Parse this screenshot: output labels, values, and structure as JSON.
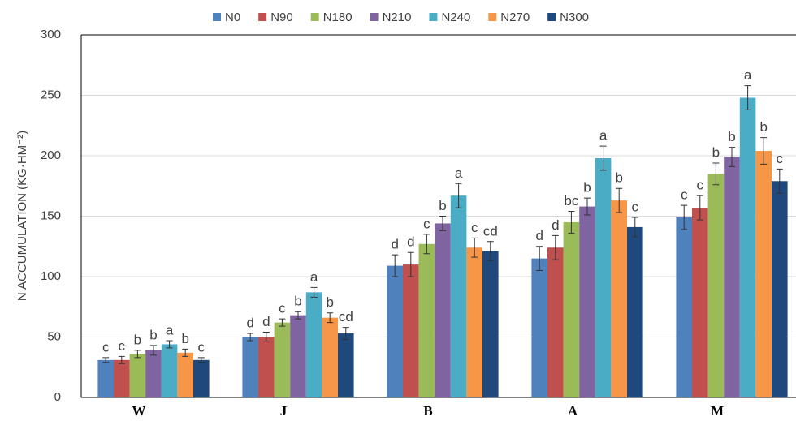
{
  "chart_data": {
    "type": "bar",
    "y_label": "N ACCUMULATION (KG·HM⁻²)",
    "categories": [
      "W",
      "J",
      "B",
      "A",
      "M"
    ],
    "series": [
      {
        "name": "N0",
        "color": "#4f81bd",
        "values": [
          31,
          50,
          109,
          115,
          149
        ],
        "errors": [
          2,
          3,
          9,
          10,
          10
        ],
        "labels": [
          "c",
          "d",
          "d",
          "d",
          "c"
        ]
      },
      {
        "name": "N90",
        "color": "#c0504d",
        "values": [
          31,
          50,
          110,
          124,
          157
        ],
        "errors": [
          3,
          4,
          10,
          10,
          10
        ],
        "labels": [
          "c",
          "d",
          "d",
          "d",
          "c"
        ]
      },
      {
        "name": "N180",
        "color": "#9bbb59",
        "values": [
          36,
          62,
          127,
          145,
          185
        ],
        "errors": [
          3,
          3,
          8,
          9,
          9
        ],
        "labels": [
          "b",
          "c",
          "c",
          "bc",
          "b"
        ]
      },
      {
        "name": "N210",
        "color": "#8064a2",
        "values": [
          39,
          68,
          144,
          158,
          199
        ],
        "errors": [
          4,
          3,
          6,
          7,
          8
        ],
        "labels": [
          "b",
          "b",
          "b",
          "b",
          "b"
        ]
      },
      {
        "name": "N240",
        "color": "#4bacc6",
        "values": [
          44,
          87,
          167,
          198,
          248
        ],
        "errors": [
          3,
          4,
          10,
          10,
          10
        ],
        "labels": [
          "a",
          "a",
          "a",
          "a",
          "a"
        ]
      },
      {
        "name": "N270",
        "color": "#f79646",
        "values": [
          37,
          66,
          124,
          163,
          204
        ],
        "errors": [
          3,
          4,
          8,
          10,
          11
        ],
        "labels": [
          "b",
          "b",
          "c",
          "b",
          "b"
        ]
      },
      {
        "name": "N300",
        "color": "#1f497d",
        "values": [
          31,
          53,
          121,
          141,
          179
        ],
        "errors": [
          2,
          5,
          8,
          8,
          10
        ],
        "labels": [
          "c",
          "cd",
          "cd",
          "c",
          "c"
        ]
      }
    ],
    "ylim": [
      0,
      300
    ],
    "yticks": [
      0,
      50,
      100,
      150,
      200,
      250,
      300
    ],
    "grid": true,
    "legend": "top"
  }
}
